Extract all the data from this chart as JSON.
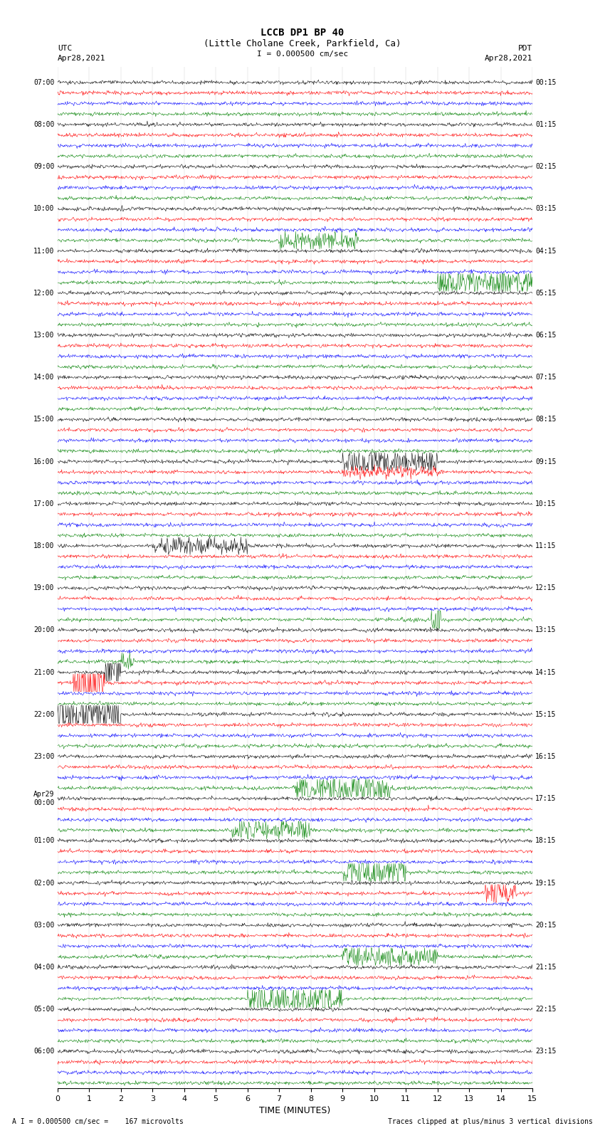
{
  "title_line1": "LCCB DP1 BP 40",
  "title_line2": "(Little Cholane Creek, Parkfield, Ca)",
  "scale_text": "I = 0.000500 cm/sec",
  "footer_left": "A I = 0.000500 cm/sec =    167 microvolts",
  "footer_right": "Traces clipped at plus/minus 3 vertical divisions",
  "utc_label": "UTC",
  "utc_date": "Apr28,2021",
  "pdt_label": "PDT",
  "pdt_date": "Apr28,2021",
  "bg_color": "#ffffff",
  "trace_colors": [
    "black",
    "red",
    "blue",
    "green"
  ],
  "xlabel": "TIME (MINUTES)",
  "x_ticks": [
    0,
    1,
    2,
    3,
    4,
    5,
    6,
    7,
    8,
    9,
    10,
    11,
    12,
    13,
    14,
    15
  ],
  "left_times": [
    "07:00",
    "",
    "",
    "",
    "08:00",
    "",
    "",
    "",
    "09:00",
    "",
    "",
    "",
    "10:00",
    "",
    "",
    "",
    "11:00",
    "",
    "",
    "",
    "12:00",
    "",
    "",
    "",
    "13:00",
    "",
    "",
    "",
    "14:00",
    "",
    "",
    "",
    "15:00",
    "",
    "",
    "",
    "16:00",
    "",
    "",
    "",
    "17:00",
    "",
    "",
    "",
    "18:00",
    "",
    "",
    "",
    "19:00",
    "",
    "",
    "",
    "20:00",
    "",
    "",
    "",
    "21:00",
    "",
    "",
    "",
    "22:00",
    "",
    "",
    "",
    "23:00",
    "",
    "",
    "",
    "Apr29\n00:00",
    "",
    "",
    "",
    "01:00",
    "",
    "",
    "",
    "02:00",
    "",
    "",
    "",
    "03:00",
    "",
    "",
    "",
    "04:00",
    "",
    "",
    "",
    "05:00",
    "",
    "",
    "",
    "06:00",
    "",
    "",
    ""
  ],
  "right_times": [
    "00:15",
    "",
    "",
    "",
    "01:15",
    "",
    "",
    "",
    "02:15",
    "",
    "",
    "",
    "03:15",
    "",
    "",
    "",
    "04:15",
    "",
    "",
    "",
    "05:15",
    "",
    "",
    "",
    "06:15",
    "",
    "",
    "",
    "07:15",
    "",
    "",
    "",
    "08:15",
    "",
    "",
    "",
    "09:15",
    "",
    "",
    "",
    "10:15",
    "",
    "",
    "",
    "11:15",
    "",
    "",
    "",
    "12:15",
    "",
    "",
    "",
    "13:15",
    "",
    "",
    "",
    "14:15",
    "",
    "",
    "",
    "15:15",
    "",
    "",
    "",
    "16:15",
    "",
    "",
    "",
    "17:15",
    "",
    "",
    "",
    "18:15",
    "",
    "",
    "",
    "19:15",
    "",
    "",
    "",
    "20:15",
    "",
    "",
    "",
    "21:15",
    "",
    "",
    "",
    "22:15",
    "",
    "",
    "",
    "23:15",
    "",
    "",
    ""
  ],
  "n_rows": 96,
  "n_colors": 4,
  "seed": 42
}
